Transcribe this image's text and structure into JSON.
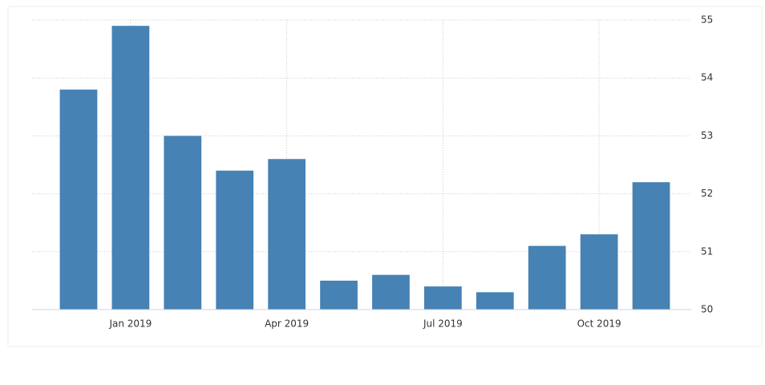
{
  "chart_data": {
    "type": "bar",
    "categories": [
      null,
      "Jan 2019",
      null,
      null,
      "Apr 2019",
      null,
      null,
      "Jul 2019",
      null,
      null,
      "Oct 2019",
      null
    ],
    "values": [
      53.8,
      54.9,
      53.0,
      52.4,
      52.6,
      50.5,
      50.6,
      50.4,
      50.3,
      51.1,
      51.3,
      52.2
    ],
    "color": "#4682b4",
    "ylim": [
      50,
      55
    ],
    "yticks": [
      50,
      51,
      52,
      53,
      54,
      55
    ],
    "y_axis_side": "right",
    "grid": true
  }
}
